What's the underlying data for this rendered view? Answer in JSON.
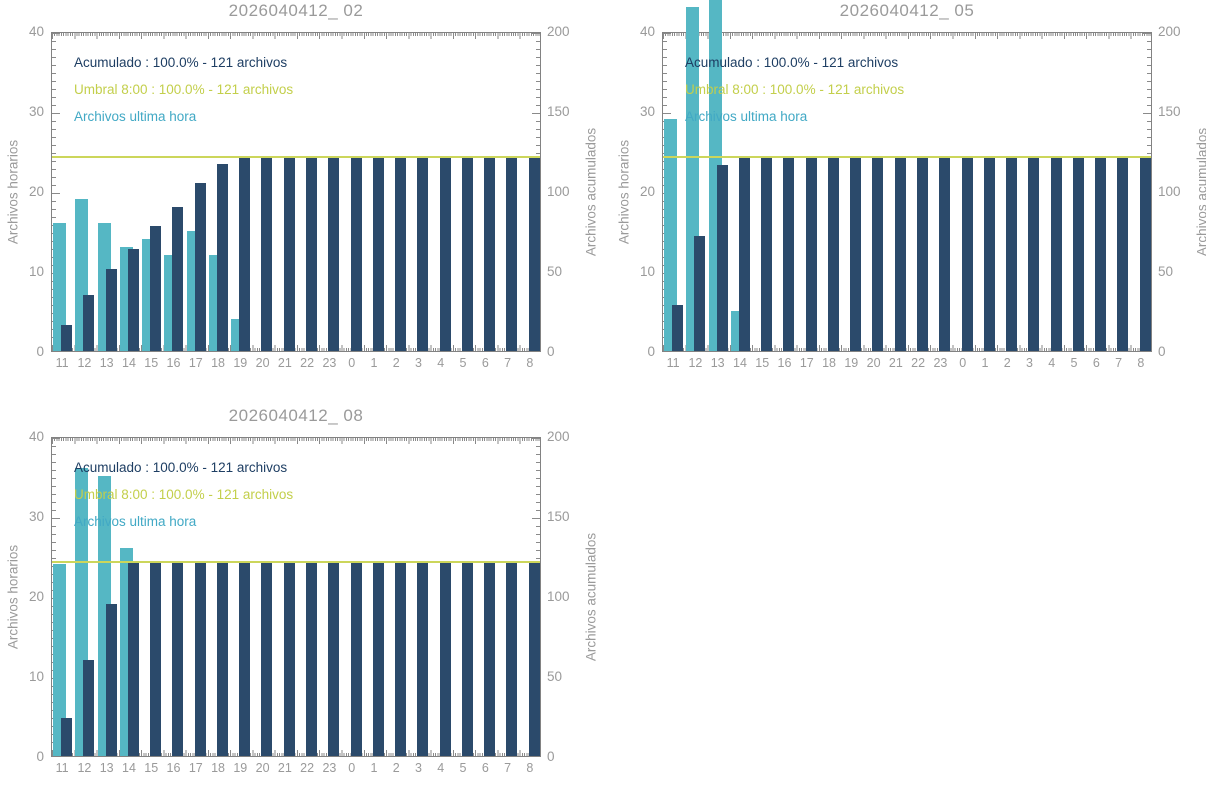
{
  "colors": {
    "hourly_bar": "#55b7c4",
    "cumulative_bar": "#2b4a6b",
    "umbral_line": "#ccd65b",
    "legend_acumulado_text": "#1e3e63",
    "legend_umbral_text": "#c3cf4b",
    "legend_ultima_text": "#42a9c5",
    "axis_frame": "#828282",
    "tick_label": "#9a9a9a",
    "title": "#9a9a9a"
  },
  "axes": {
    "left_label": "Archivos horarios",
    "right_label": "Archivos acumulados",
    "left_ticks": [
      "40",
      "30",
      "20",
      "10",
      "0"
    ],
    "right_ticks": [
      "200",
      "150",
      "100",
      "50",
      "0"
    ]
  },
  "chart_data": [
    {
      "type": "bar",
      "title": "2026040412_ 02",
      "categories": [
        "11",
        "12",
        "13",
        "14",
        "15",
        "16",
        "17",
        "18",
        "19",
        "20",
        "21",
        "22",
        "23",
        "0",
        "1",
        "2",
        "3",
        "4",
        "5",
        "6",
        "7",
        "8"
      ],
      "ylabel_left": "Archivos horarios",
      "ylabel_right": "Archivos acumulados",
      "ylim_left": [
        0,
        40
      ],
      "ylim_right": [
        0,
        200
      ],
      "legend": [
        "Acumulado : 100.0% - 121 archivos",
        "Umbral 8:00 : 100.0% - 121 archivos",
        "Archivos ultima hora"
      ],
      "threshold": {
        "name": "Umbral 8:00",
        "axis": "right",
        "value": 121
      },
      "series": [
        {
          "name": "Archivos ultima hora",
          "axis": "left",
          "values": [
            16,
            19,
            16,
            13,
            14,
            12,
            15,
            12,
            4,
            0,
            0,
            0,
            0,
            0,
            0,
            0,
            0,
            0,
            0,
            0,
            0,
            0
          ]
        },
        {
          "name": "Acumulado",
          "axis": "right",
          "values": [
            16,
            35,
            51,
            64,
            78,
            90,
            105,
            117,
            121,
            121,
            121,
            121,
            121,
            121,
            121,
            121,
            121,
            121,
            121,
            121,
            121,
            121
          ]
        }
      ]
    },
    {
      "type": "bar",
      "title": "2026040412_ 05",
      "categories": [
        "11",
        "12",
        "13",
        "14",
        "15",
        "16",
        "17",
        "18",
        "19",
        "20",
        "21",
        "22",
        "23",
        "0",
        "1",
        "2",
        "3",
        "4",
        "5",
        "6",
        "7",
        "8"
      ],
      "ylabel_left": "Archivos horarios",
      "ylabel_right": "Archivos acumulados",
      "ylim_left": [
        0,
        40
      ],
      "ylim_right": [
        0,
        200
      ],
      "legend": [
        "Acumulado : 100.0% - 121 archivos",
        "Umbral 8:00 : 100.0% - 121 archivos",
        "Archivos ultima hora"
      ],
      "threshold": {
        "name": "Umbral 8:00",
        "axis": "right",
        "value": 121
      },
      "series": [
        {
          "name": "Archivos ultima hora",
          "axis": "left",
          "values": [
            29,
            43,
            44,
            5,
            0,
            0,
            0,
            0,
            0,
            0,
            0,
            0,
            0,
            0,
            0,
            0,
            0,
            0,
            0,
            0,
            0,
            0
          ]
        },
        {
          "name": "Acumulado",
          "axis": "right",
          "values": [
            29,
            72,
            116,
            121,
            121,
            121,
            121,
            121,
            121,
            121,
            121,
            121,
            121,
            121,
            121,
            121,
            121,
            121,
            121,
            121,
            121,
            121
          ]
        }
      ]
    },
    {
      "type": "bar",
      "title": "2026040412_ 08",
      "categories": [
        "11",
        "12",
        "13",
        "14",
        "15",
        "16",
        "17",
        "18",
        "19",
        "20",
        "21",
        "22",
        "23",
        "0",
        "1",
        "2",
        "3",
        "4",
        "5",
        "6",
        "7",
        "8"
      ],
      "ylabel_left": "Archivos horarios",
      "ylabel_right": "Archivos acumulados",
      "ylim_left": [
        0,
        40
      ],
      "ylim_right": [
        0,
        200
      ],
      "legend": [
        "Acumulado : 100.0% - 121 archivos",
        "Umbral 8:00 : 100.0% - 121 archivos",
        "Archivos ultima hora"
      ],
      "threshold": {
        "name": "Umbral 8:00",
        "axis": "right",
        "value": 121
      },
      "series": [
        {
          "name": "Archivos ultima hora",
          "axis": "left",
          "values": [
            24,
            36,
            35,
            26,
            0,
            0,
            0,
            0,
            0,
            0,
            0,
            0,
            0,
            0,
            0,
            0,
            0,
            0,
            0,
            0,
            0,
            0
          ]
        },
        {
          "name": "Acumulado",
          "axis": "right",
          "values": [
            24,
            60,
            95,
            121,
            121,
            121,
            121,
            121,
            121,
            121,
            121,
            121,
            121,
            121,
            121,
            121,
            121,
            121,
            121,
            121,
            121,
            121
          ]
        }
      ]
    }
  ]
}
